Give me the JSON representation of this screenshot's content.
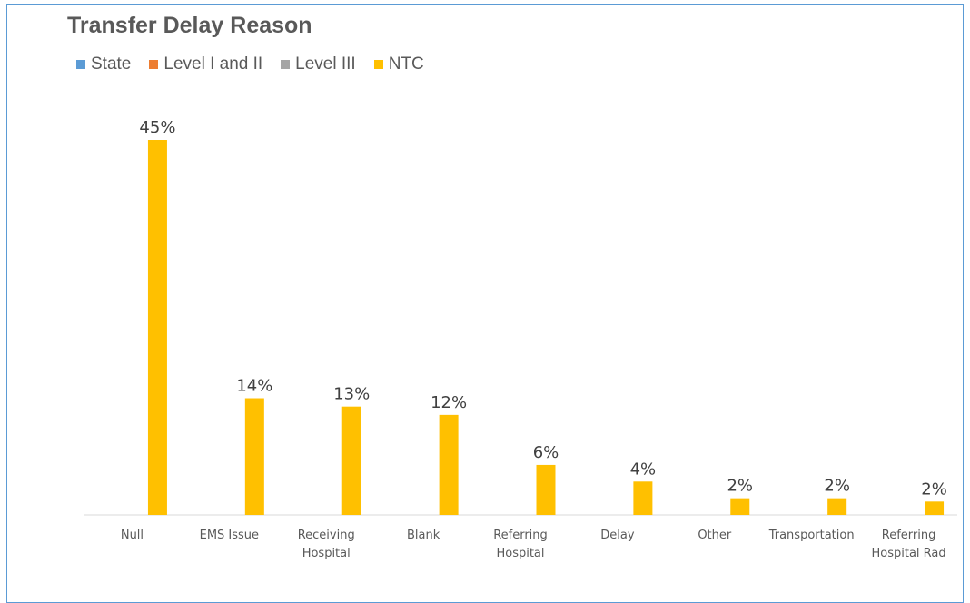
{
  "chart_data": {
    "type": "bar",
    "title": "Transfer Delay Reason",
    "xlabel": "",
    "ylabel": "",
    "ylim": [
      0,
      50
    ],
    "grid": false,
    "legend_position": "top-left",
    "categories": [
      [
        "Null"
      ],
      [
        "EMS Issue"
      ],
      [
        "Receiving",
        "Hospital"
      ],
      [
        "Blank"
      ],
      [
        "Referring",
        "Hospital"
      ],
      [
        "Delay"
      ],
      [
        "Other"
      ],
      [
        "Transportation"
      ],
      [
        "Referring",
        "Hospital Rad"
      ]
    ],
    "series": [
      {
        "name": "State",
        "color": "#5b9bd5",
        "values": [
          null,
          null,
          null,
          null,
          null,
          null,
          null,
          null,
          null
        ]
      },
      {
        "name": "Level I and II",
        "color": "#ed7d31",
        "values": [
          null,
          null,
          null,
          null,
          null,
          null,
          null,
          null,
          null
        ]
      },
      {
        "name": "Level III",
        "color": "#a5a5a5",
        "values": [
          null,
          null,
          null,
          null,
          null,
          null,
          null,
          null,
          null
        ]
      },
      {
        "name": "NTC",
        "color": "#ffc000",
        "values": [
          45,
          14,
          13,
          12,
          6,
          4,
          2,
          2,
          1.6
        ]
      }
    ],
    "data_labels": [
      "45%",
      "14%",
      "13%",
      "12%",
      "6%",
      "4%",
      "2%",
      "2%",
      "2%"
    ]
  }
}
